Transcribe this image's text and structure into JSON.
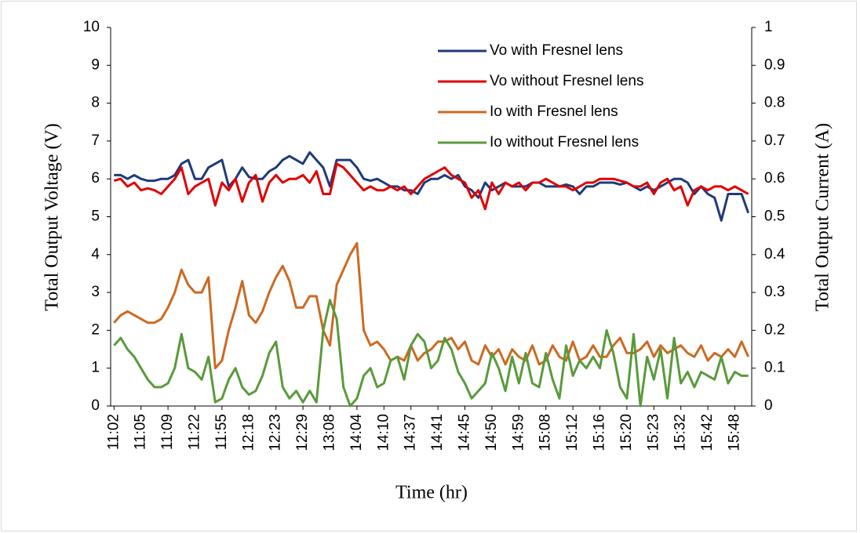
{
  "chart_data": {
    "type": "line",
    "xlabel": "Time (hr)",
    "ylabel": "Total Output Voltage (V)",
    "y2label": "Total Output Current (A)",
    "categories": [
      "11:02",
      null,
      null,
      null,
      "11:05",
      null,
      null,
      null,
      "11:09",
      null,
      null,
      null,
      "11:22",
      null,
      null,
      null,
      "11:55",
      null,
      null,
      null,
      "12:18",
      null,
      null,
      null,
      "12:23",
      null,
      null,
      null,
      "12:29",
      null,
      null,
      null,
      "13:08",
      null,
      null,
      null,
      "14:04",
      null,
      null,
      null,
      "14:10",
      null,
      null,
      null,
      "14:37",
      null,
      null,
      null,
      "14:41",
      null,
      null,
      null,
      "14:45",
      null,
      null,
      null,
      "14:50",
      null,
      null,
      null,
      "14:59",
      null,
      null,
      null,
      "15:08",
      null,
      null,
      null,
      "15:12",
      null,
      null,
      null,
      "15:16",
      null,
      null,
      null,
      "15:20",
      null,
      null,
      null,
      "15:23",
      null,
      null,
      null,
      "15:32",
      null,
      null,
      null,
      "15:42",
      null,
      null,
      null,
      "15:48",
      null,
      null
    ],
    "ylim": [
      0,
      10
    ],
    "yticks": [
      0,
      1,
      2,
      3,
      4,
      5,
      6,
      7,
      8,
      9,
      10
    ],
    "y2lim": [
      0,
      1
    ],
    "y2ticks": [
      0,
      0.1,
      0.2,
      0.3,
      0.4,
      0.5,
      0.6,
      0.7,
      0.8,
      0.9,
      1
    ],
    "legend": "top-right",
    "series": [
      {
        "name": "Vo with Fresnel lens",
        "color": "#1f3a7a",
        "values": [
          6.1,
          6.1,
          6.0,
          6.1,
          6.0,
          5.95,
          5.95,
          6.0,
          6.0,
          6.1,
          6.4,
          6.5,
          6.0,
          6.0,
          6.3,
          6.4,
          6.5,
          5.8,
          6.0,
          6.3,
          6.05,
          6.0,
          6.0,
          6.2,
          6.3,
          6.5,
          6.6,
          6.5,
          6.4,
          6.7,
          6.5,
          6.3,
          5.8,
          6.5,
          6.5,
          6.5,
          6.3,
          6.0,
          5.95,
          6.0,
          5.9,
          5.8,
          5.8,
          5.7,
          5.7,
          5.6,
          5.9,
          6.0,
          6.0,
          6.1,
          6.0,
          6.1,
          5.8,
          5.7,
          5.5,
          5.9,
          5.7,
          5.8,
          5.9,
          5.8,
          5.8,
          5.8,
          5.9,
          5.9,
          5.8,
          5.8,
          5.8,
          5.85,
          5.8,
          5.6,
          5.8,
          5.8,
          5.9,
          5.9,
          5.9,
          5.85,
          5.9,
          5.8,
          5.7,
          5.8,
          5.7,
          5.8,
          5.9,
          6.0,
          6.0,
          5.9,
          5.6,
          5.8,
          5.6,
          5.5,
          4.9,
          5.6,
          5.6,
          5.6,
          5.1
        ]
      },
      {
        "name": "Vo without Fresnel lens",
        "color": "#e00000",
        "values": [
          5.95,
          6.0,
          5.8,
          5.9,
          5.7,
          5.75,
          5.7,
          5.6,
          5.8,
          6.0,
          6.3,
          5.6,
          5.8,
          5.9,
          6.0,
          5.3,
          5.9,
          5.7,
          6.0,
          5.4,
          5.9,
          6.1,
          5.4,
          5.9,
          6.1,
          5.9,
          6.0,
          6.0,
          6.1,
          5.9,
          6.2,
          5.6,
          5.6,
          6.4,
          6.3,
          6.1,
          5.9,
          5.7,
          5.8,
          5.7,
          5.7,
          5.8,
          5.7,
          5.8,
          5.6,
          5.8,
          6.0,
          6.1,
          6.2,
          6.3,
          6.1,
          6.0,
          5.9,
          5.5,
          5.7,
          5.2,
          5.9,
          5.6,
          5.9,
          5.8,
          5.9,
          5.7,
          5.9,
          5.9,
          6.0,
          5.9,
          5.8,
          5.8,
          5.7,
          5.8,
          5.9,
          5.9,
          6.0,
          6.0,
          6.0,
          5.95,
          5.9,
          5.8,
          5.8,
          5.9,
          5.6,
          5.9,
          6.0,
          5.7,
          5.8,
          5.3,
          5.7,
          5.8,
          5.7,
          5.8,
          5.8,
          5.7,
          5.8,
          5.7,
          5.6
        ]
      },
      {
        "name": "Io with Fresnel lens",
        "color": "#cc6a22",
        "axis": "y2",
        "values": [
          0.22,
          0.24,
          0.25,
          0.24,
          0.23,
          0.22,
          0.22,
          0.23,
          0.26,
          0.3,
          0.36,
          0.32,
          0.3,
          0.3,
          0.34,
          0.1,
          0.12,
          0.2,
          0.26,
          0.33,
          0.24,
          0.22,
          0.25,
          0.3,
          0.34,
          0.37,
          0.33,
          0.26,
          0.26,
          0.29,
          0.29,
          0.2,
          0.16,
          0.32,
          0.36,
          0.4,
          0.43,
          0.2,
          0.16,
          0.17,
          0.15,
          0.12,
          0.13,
          0.12,
          0.16,
          0.12,
          0.14,
          0.15,
          0.17,
          0.17,
          0.18,
          0.15,
          0.17,
          0.12,
          0.11,
          0.16,
          0.13,
          0.15,
          0.11,
          0.15,
          0.13,
          0.12,
          0.16,
          0.11,
          0.12,
          0.16,
          0.13,
          0.12,
          0.17,
          0.12,
          0.13,
          0.16,
          0.13,
          0.13,
          0.16,
          0.18,
          0.14,
          0.14,
          0.15,
          0.17,
          0.13,
          0.16,
          0.14,
          0.15,
          0.16,
          0.14,
          0.13,
          0.16,
          0.12,
          0.14,
          0.13,
          0.15,
          0.13,
          0.17,
          0.13
        ]
      },
      {
        "name": "Io without Fresnel lens",
        "color": "#5a9a3c",
        "axis": "y2",
        "values": [
          0.16,
          0.18,
          0.15,
          0.13,
          0.1,
          0.07,
          0.05,
          0.05,
          0.06,
          0.1,
          0.19,
          0.1,
          0.09,
          0.07,
          0.13,
          0.01,
          0.02,
          0.07,
          0.1,
          0.05,
          0.03,
          0.04,
          0.08,
          0.14,
          0.17,
          0.05,
          0.02,
          0.04,
          0.01,
          0.04,
          0.01,
          0.2,
          0.28,
          0.23,
          0.05,
          0.0,
          0.02,
          0.08,
          0.1,
          0.05,
          0.06,
          0.12,
          0.13,
          0.07,
          0.16,
          0.19,
          0.17,
          0.1,
          0.12,
          0.18,
          0.15,
          0.09,
          0.06,
          0.02,
          0.04,
          0.06,
          0.14,
          0.1,
          0.04,
          0.13,
          0.06,
          0.14,
          0.06,
          0.05,
          0.14,
          0.07,
          0.02,
          0.16,
          0.08,
          0.12,
          0.1,
          0.13,
          0.1,
          0.2,
          0.14,
          0.05,
          0.02,
          0.19,
          0.0,
          0.13,
          0.07,
          0.15,
          0.02,
          0.18,
          0.06,
          0.09,
          0.05,
          0.09,
          0.08,
          0.07,
          0.13,
          0.06,
          0.09,
          0.08,
          0.08
        ]
      }
    ]
  }
}
